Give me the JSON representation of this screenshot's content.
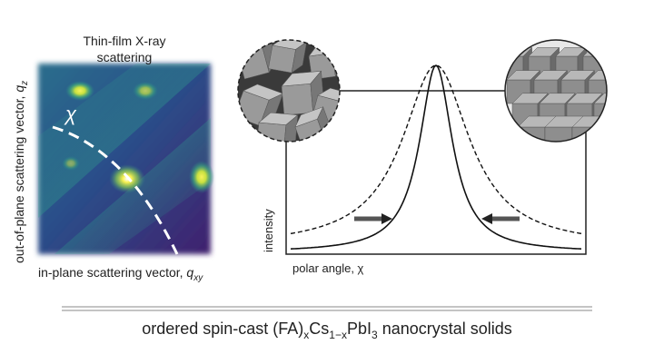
{
  "scattering_panel": {
    "title": [
      "Thin-film X-ray",
      "scattering"
    ],
    "y_label": [
      "out-of-plane scattering vector, ",
      "q",
      "z"
    ],
    "x_label": [
      "in-plane scattering vector, ",
      "q",
      "xy"
    ],
    "curve_label": "χ"
  },
  "intensity_panel": {
    "y_label": "intensity",
    "x_label": "polar angle, χ"
  },
  "caption": [
    "ordered spin-cast (FA)",
    "x",
    "Cs",
    "1−x",
    "PbI",
    "3",
    " nanocrystal solids"
  ]
}
